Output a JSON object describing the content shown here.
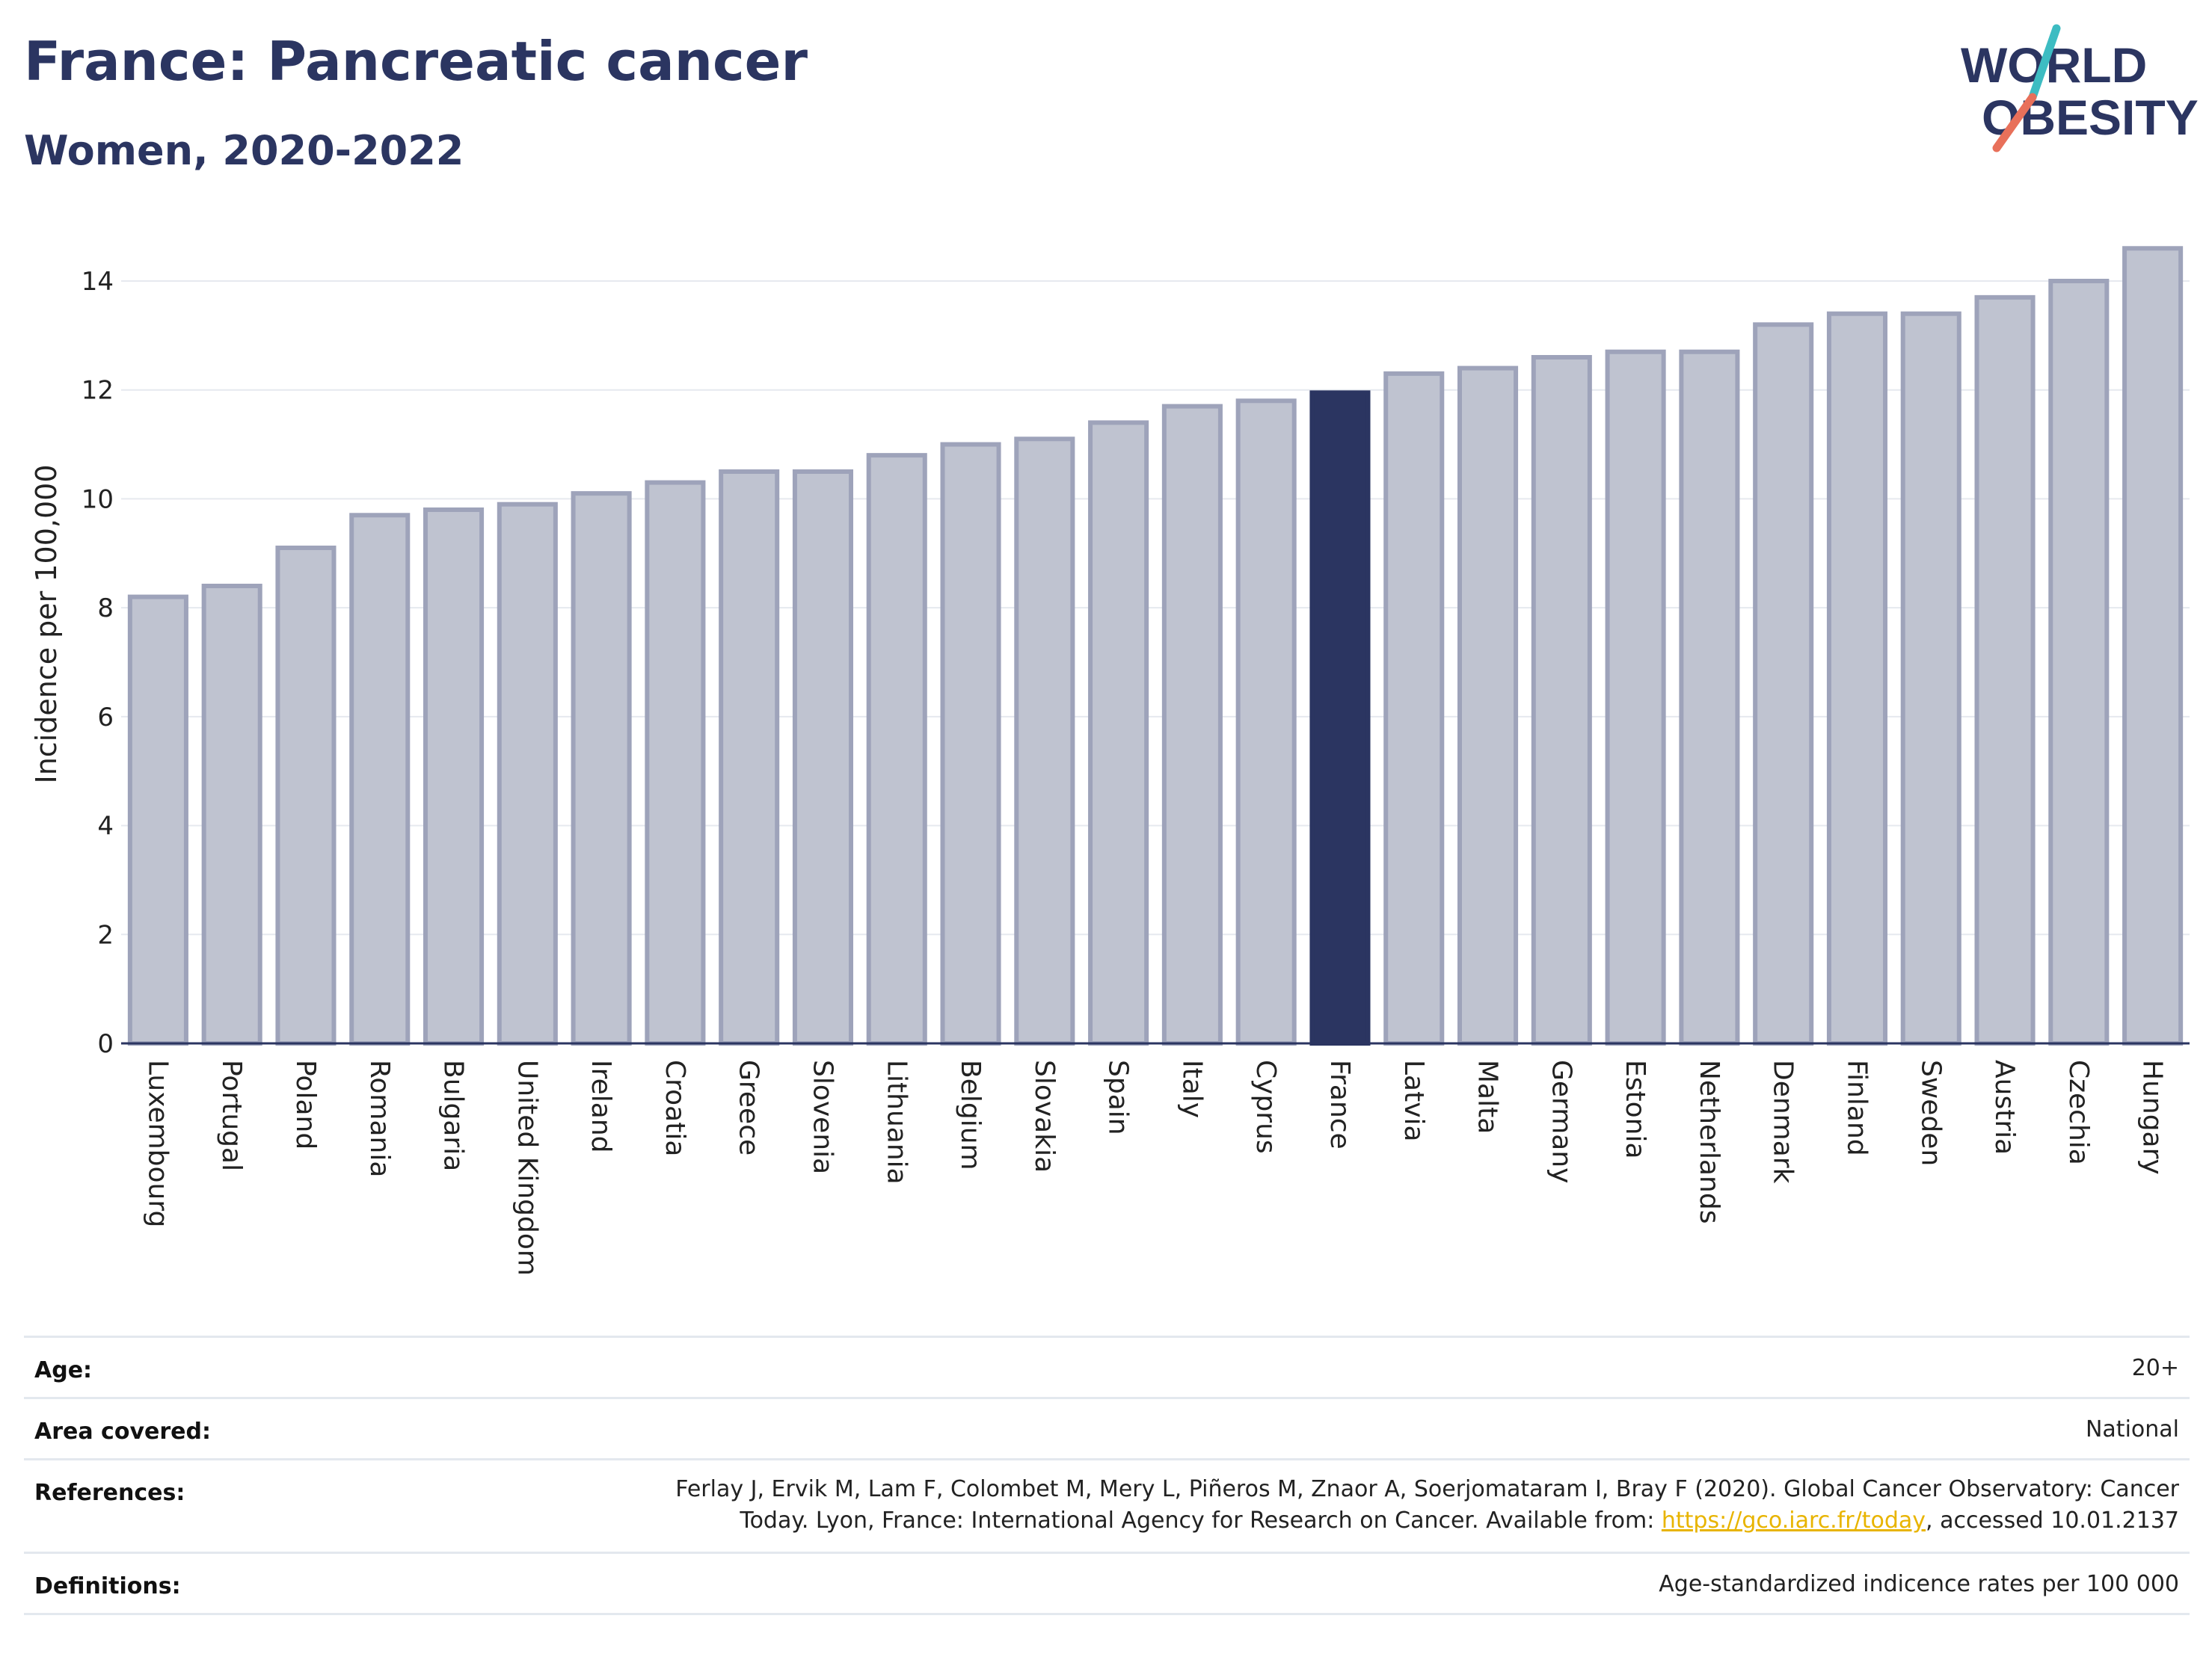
{
  "header": {
    "title": "France: Pancreatic cancer",
    "subtitle": "Women, 2020-2022"
  },
  "logo": {
    "line1": "WORLD",
    "line2": "OBESITY",
    "slash_colors": [
      "#3dbcc2",
      "#e8705a"
    ]
  },
  "colors": {
    "highlight": "#2b3561",
    "bar": "#bfc3d0",
    "bar_border": "#9ea3ba",
    "text": "#2b3561",
    "link": "#e8b400"
  },
  "chart_data": {
    "type": "bar",
    "ylabel": "Incidence per 100,000",
    "ylim": [
      0,
      14.7
    ],
    "yticks": [
      0,
      2,
      4,
      6,
      8,
      10,
      12,
      14
    ],
    "grid": true,
    "highlight": "France",
    "categories": [
      "Luxembourg",
      "Portugal",
      "Poland",
      "Romania",
      "Bulgaria",
      "United Kingdom",
      "Ireland",
      "Croatia",
      "Greece",
      "Slovenia",
      "Lithuania",
      "Belgium",
      "Slovakia",
      "Spain",
      "Italy",
      "Cyprus",
      "France",
      "Latvia",
      "Malta",
      "Germany",
      "Estonia",
      "Netherlands",
      "Denmark",
      "Finland",
      "Sweden",
      "Austria",
      "Czechia",
      "Hungary"
    ],
    "values": [
      8.2,
      8.4,
      9.1,
      9.7,
      9.8,
      9.9,
      10.1,
      10.3,
      10.5,
      10.5,
      10.8,
      11.0,
      11.1,
      11.4,
      11.7,
      11.8,
      11.95,
      12.3,
      12.4,
      12.6,
      12.7,
      12.7,
      13.2,
      13.4,
      13.4,
      13.7,
      14.0,
      14.6
    ]
  },
  "info": {
    "rows": [
      {
        "label": "Age:",
        "value": "20+"
      },
      {
        "label": "Area covered:",
        "value": "National"
      },
      {
        "label": "References:",
        "value_line1": "Ferlay J, Ervik M, Lam F, Colombet M, Mery L, Piñeros M, Znaor A, Soerjomataram I, Bray F (2020). Global Cancer Observatory: Cancer",
        "value_line2_pre": "Today. Lyon, France: International Agency for Research on Cancer. Available from: ",
        "link": "https://gco.iarc.fr/today",
        "value_line2_post": ", accessed 10.01.2137"
      },
      {
        "label": "Definitions:",
        "value": "Age-standardized indicence rates per 100 000"
      }
    ]
  }
}
